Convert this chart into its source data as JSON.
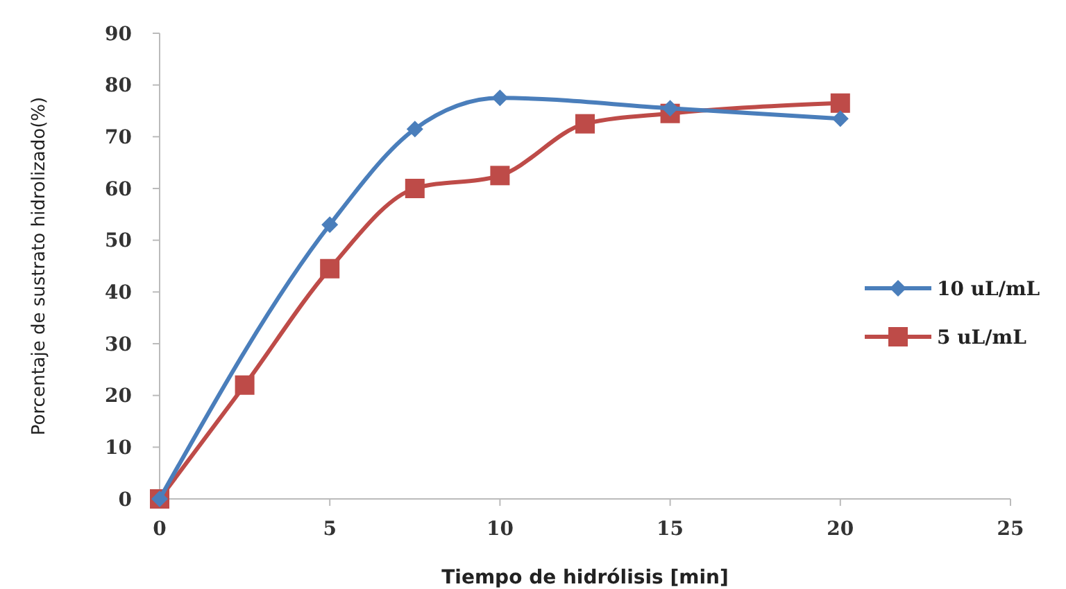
{
  "chart_data": {
    "type": "line",
    "xlabel": "Tiempo de hidrólisis [min]",
    "ylabel": "Porcentaje de sustrato hidrolizado(%)",
    "xlim": [
      0,
      25
    ],
    "xticks": [
      0,
      5,
      10,
      15,
      20,
      25
    ],
    "ylim": [
      0,
      90
    ],
    "yticks": [
      0,
      10,
      20,
      30,
      40,
      50,
      60,
      70,
      80,
      90
    ],
    "grid": false,
    "legend": "right",
    "series": [
      {
        "name": "10 uL/mL",
        "color": "#4a7ebb",
        "marker": "diamond",
        "x": [
          0,
          5,
          7.5,
          10,
          15,
          20
        ],
        "values": [
          0,
          53,
          71.5,
          77.5,
          75.5,
          73.5
        ]
      },
      {
        "name": "5 uL/mL",
        "color": "#be4b48",
        "marker": "square",
        "x": [
          0,
          2.5,
          5,
          7.5,
          10,
          12.5,
          15,
          20
        ],
        "values": [
          0,
          22,
          44.5,
          60,
          62.5,
          72.5,
          74.5,
          76.5
        ]
      }
    ]
  }
}
